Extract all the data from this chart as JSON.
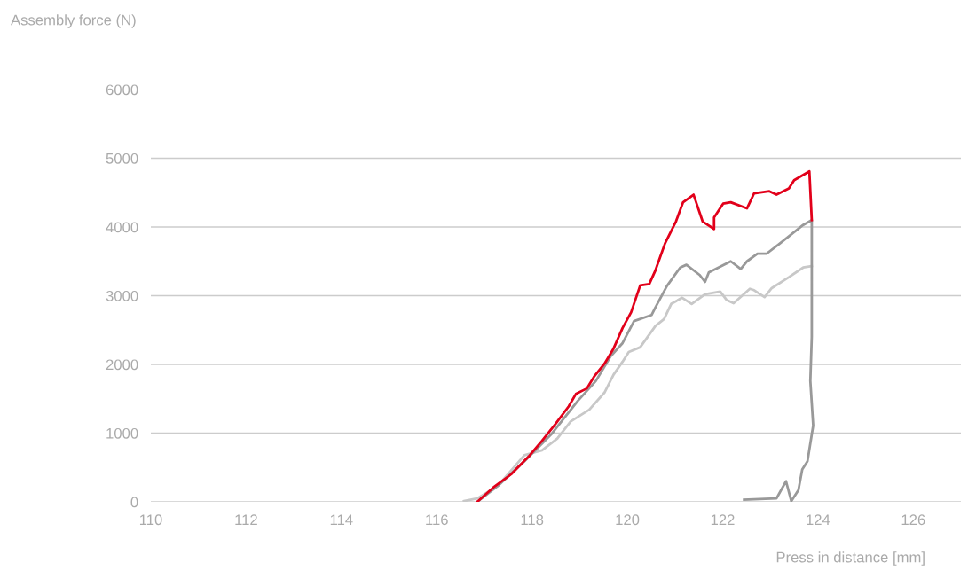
{
  "chart_data": {
    "type": "line",
    "xlabel": "Press in distance [mm]",
    "ylabel": "Assembly force (N)",
    "xlim": [
      110,
      127
    ],
    "xticks": [
      110,
      112,
      114,
      116,
      118,
      120,
      122,
      124,
      126
    ],
    "ylim": [
      0,
      6000
    ],
    "yticks": [
      0,
      1000,
      2000,
      3000,
      4000,
      5000,
      6000
    ],
    "grid": "y",
    "marker": "none",
    "line_style": "solid",
    "series": [
      {
        "color": "#c8c8c8",
        "x": [
          116.57,
          116.85,
          117.28,
          117.84,
          118.21,
          118.53,
          118.81,
          119.2,
          119.52,
          119.71,
          119.9,
          120.03,
          120.27,
          120.59,
          120.77,
          120.92,
          121.15,
          121.35,
          121.63,
          121.95,
          122.08,
          122.23,
          122.57,
          122.66,
          122.88,
          123.03,
          123.39,
          123.69,
          123.87
        ],
        "values": [
          10,
          50,
          230,
          680,
          750,
          920,
          1170,
          1340,
          1590,
          1850,
          2040,
          2180,
          2250,
          2560,
          2660,
          2880,
          2970,
          2880,
          3020,
          3060,
          2940,
          2890,
          3100,
          3080,
          2980,
          3110,
          3270,
          3410,
          3430
        ]
      },
      {
        "color": "#999999",
        "x": [
          116.85,
          117.28,
          117.84,
          118.4,
          118.96,
          119.34,
          119.65,
          119.9,
          120.14,
          120.51,
          120.59,
          120.83,
          121.11,
          121.24,
          121.52,
          121.63,
          121.71,
          122.17,
          122.38,
          122.51,
          122.73,
          122.92,
          123.2,
          123.69,
          123.87,
          123.87,
          123.84,
          123.9,
          123.78,
          123.67,
          123.59,
          123.44,
          123.33,
          123.13,
          122.45
        ],
        "values": [
          0,
          230,
          590,
          980,
          1470,
          1760,
          2120,
          2310,
          2630,
          2720,
          2830,
          3140,
          3410,
          3450,
          3300,
          3200,
          3340,
          3500,
          3390,
          3500,
          3610,
          3610,
          3760,
          4030,
          4100,
          2400,
          1760,
          1110,
          590,
          470,
          170,
          10,
          300,
          50,
          30
        ]
      },
      {
        "color": "#e2001a",
        "x": [
          116.85,
          117.19,
          117.56,
          117.93,
          118.21,
          118.5,
          118.77,
          118.92,
          119.15,
          119.3,
          119.52,
          119.71,
          119.9,
          120.08,
          120.27,
          120.46,
          120.59,
          120.79,
          121.02,
          121.17,
          121.39,
          121.58,
          121.82,
          121.82,
          122.01,
          122.17,
          122.51,
          122.66,
          122.98,
          123.13,
          123.39,
          123.5,
          123.82,
          123.87
        ],
        "values": [
          0,
          210,
          400,
          660,
          890,
          1140,
          1390,
          1570,
          1650,
          1820,
          2010,
          2230,
          2530,
          2760,
          3150,
          3170,
          3370,
          3760,
          4080,
          4360,
          4470,
          4080,
          3970,
          4140,
          4340,
          4360,
          4270,
          4490,
          4520,
          4470,
          4560,
          4680,
          4810,
          4100
        ]
      }
    ]
  }
}
